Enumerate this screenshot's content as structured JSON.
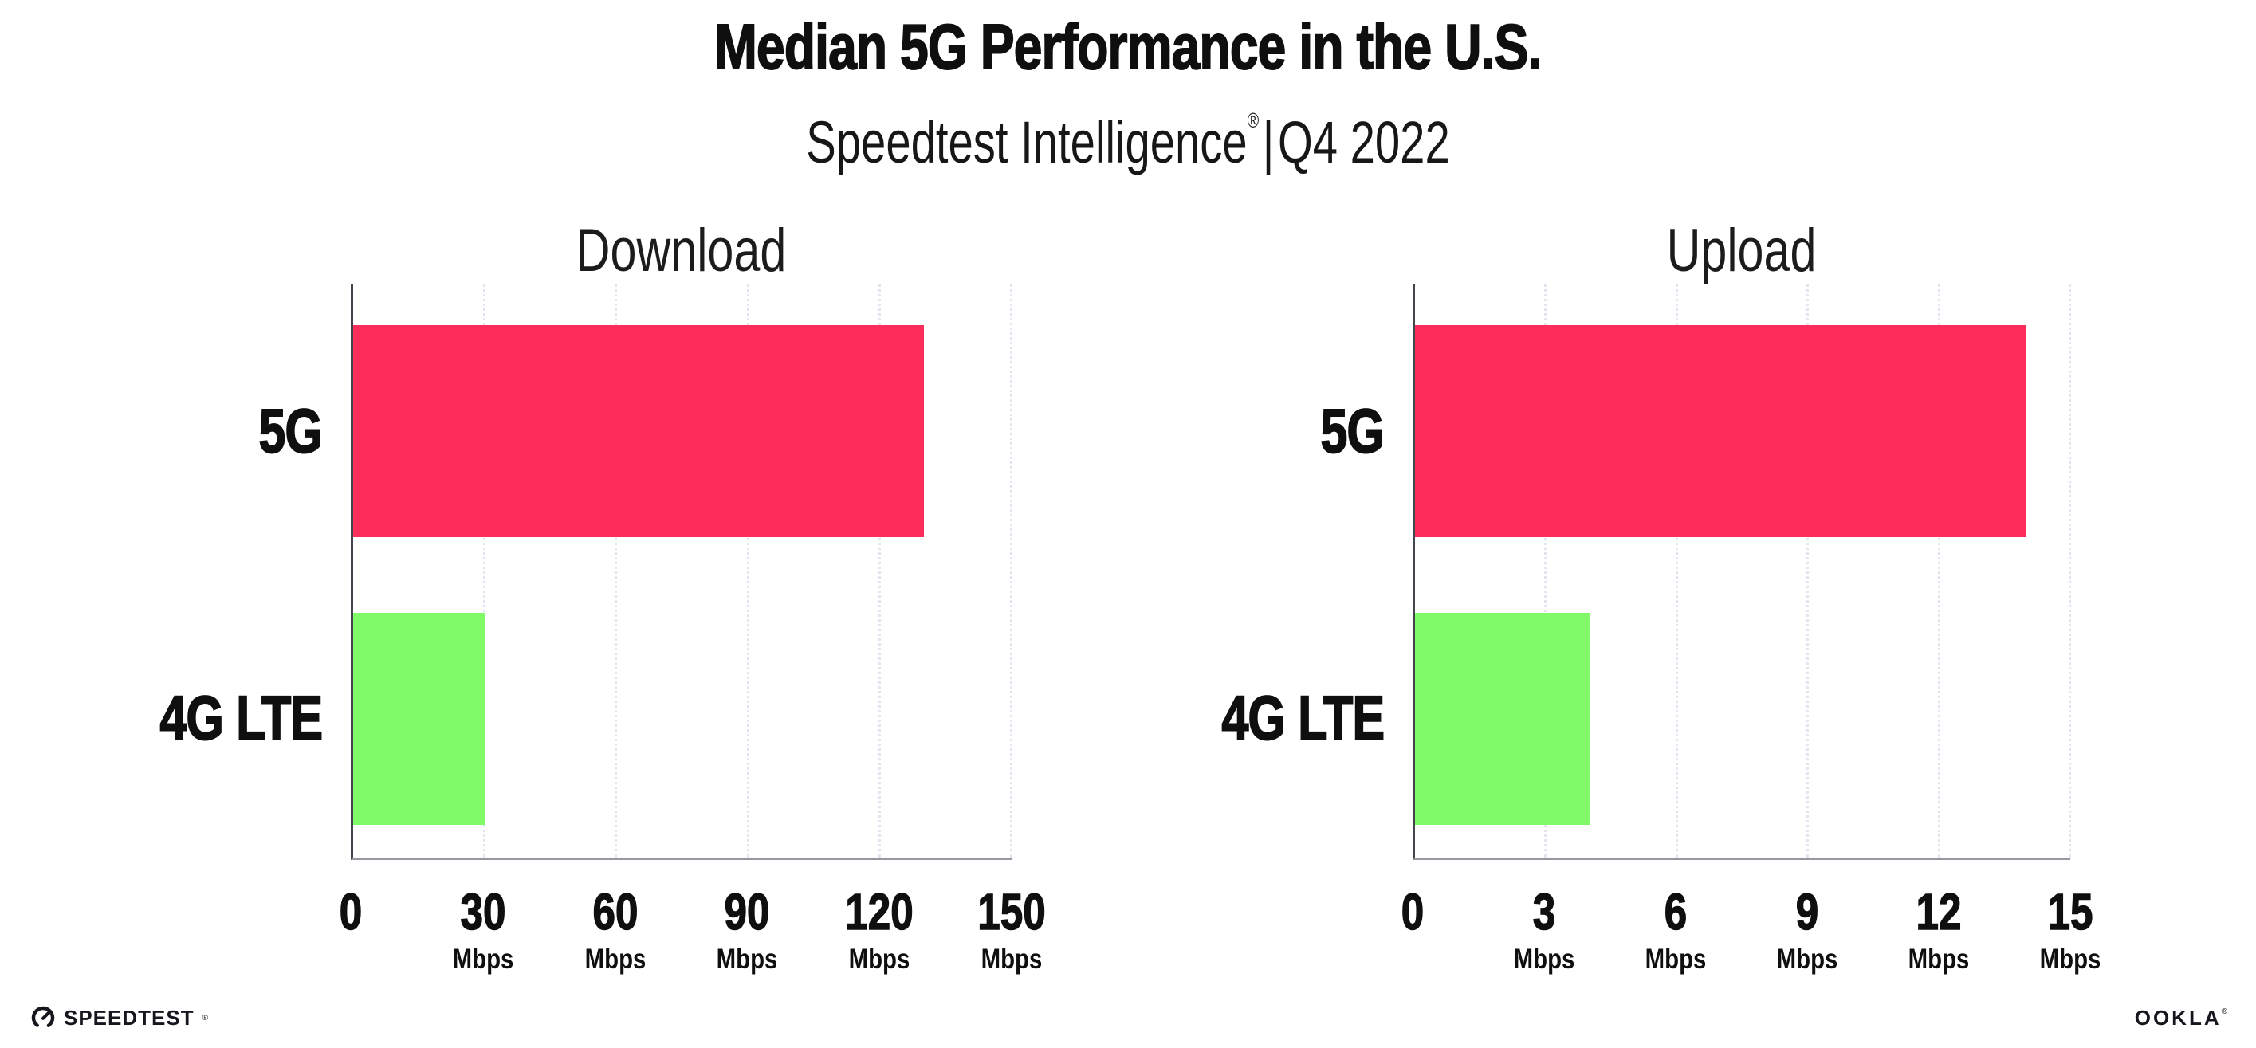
{
  "header": {
    "title": "Median 5G Performance in the U.S.",
    "subtitle_product": "Speedtest Intelligence",
    "subtitle_reg": "®",
    "subtitle_separator": "|",
    "subtitle_period": "Q4 2022"
  },
  "chart_data": [
    {
      "type": "bar",
      "orientation": "horizontal",
      "title": "Download",
      "categories": [
        "5G",
        "4G LTE"
      ],
      "values": [
        130,
        30
      ],
      "unit": "Mbps",
      "xlabel": "",
      "xlim": [
        0,
        150
      ],
      "xticks": [
        0,
        30,
        60,
        90,
        120,
        150
      ],
      "tick_labels": [
        {
          "num": "0",
          "unit": ""
        },
        {
          "num": "30",
          "unit": "Mbps"
        },
        {
          "num": "60",
          "unit": "Mbps"
        },
        {
          "num": "90",
          "unit": "Mbps"
        },
        {
          "num": "120",
          "unit": "Mbps"
        },
        {
          "num": "150",
          "unit": "Mbps"
        }
      ],
      "bar_colors": [
        "#FC2D5A",
        "#80FA66"
      ],
      "grid": "vertical-dotted",
      "legend": "none"
    },
    {
      "type": "bar",
      "orientation": "horizontal",
      "title": "Upload",
      "categories": [
        "5G",
        "4G LTE"
      ],
      "values": [
        14,
        4
      ],
      "unit": "Mbps",
      "xlabel": "",
      "xlim": [
        0,
        15
      ],
      "xticks": [
        0,
        3,
        6,
        9,
        12,
        15
      ],
      "tick_labels": [
        {
          "num": "0",
          "unit": ""
        },
        {
          "num": "3",
          "unit": "Mbps"
        },
        {
          "num": "6",
          "unit": "Mbps"
        },
        {
          "num": "9",
          "unit": "Mbps"
        },
        {
          "num": "12",
          "unit": "Mbps"
        },
        {
          "num": "15",
          "unit": "Mbps"
        }
      ],
      "bar_colors": [
        "#FC2D5A",
        "#80FA66"
      ],
      "grid": "vertical-dotted",
      "legend": "none"
    }
  ],
  "footer": {
    "speedtest_label": "SPEEDTEST",
    "speedtest_mark": "®",
    "ookla_label": "OOKLA",
    "ookla_mark": "®"
  }
}
